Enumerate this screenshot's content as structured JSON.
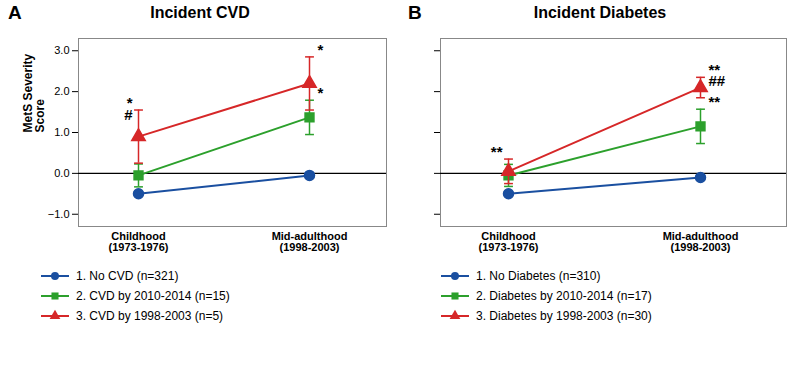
{
  "chart_data": [
    {
      "type": "line",
      "title": "Incident CVD",
      "panel_label": "A",
      "categories": [
        "Childhood\n(1973-1976)",
        "Mid-adulthood\n(1998-2003)"
      ],
      "ylabel": "MetS Severity\nScore",
      "ylim": [
        -1.3,
        3.3
      ],
      "yticks": [
        -1,
        0,
        1,
        2,
        3
      ],
      "legend": "bottom",
      "series": [
        {
          "name": "1.  No CVD (n=321)",
          "color": "#1a4fa0",
          "marker": "circle",
          "values": [
            -0.5,
            -0.05
          ],
          "errors": [
            0.05,
            0.05
          ]
        },
        {
          "name": "2.  CVD by 2010-2014 (n=15)",
          "color": "#2ca02c",
          "marker": "square",
          "values": [
            -0.05,
            1.37
          ],
          "errors": [
            0.28,
            0.42
          ]
        },
        {
          "name": "3.  CVD by 1998-2003 (n=5)",
          "color": "#d62728",
          "marker": "triangle",
          "values": [
            0.9,
            2.2
          ],
          "errors": [
            0.65,
            0.65
          ]
        }
      ],
      "annotations": [
        {
          "text": "*",
          "category": "Childhood\n(1973-1976)",
          "y": 1.6
        },
        {
          "text": "#",
          "category": "Childhood\n(1973-1976)",
          "y": 1.3
        },
        {
          "text": "*",
          "category": "Mid-adulthood\n(1998-2003)",
          "y": 2.9
        },
        {
          "text": "*",
          "category": "Mid-adulthood\n(1998-2003)",
          "y": 1.84
        }
      ]
    },
    {
      "type": "line",
      "title": "Incident Diabetes",
      "panel_label": "B",
      "categories": [
        "Childhood\n(1973-1976)",
        "Mid-adulthood\n(1998-2003)"
      ],
      "ylim": [
        -1.3,
        3.3
      ],
      "yticks": [
        -1,
        0,
        1,
        2,
        3
      ],
      "tick_labels": "x",
      "legend": "bottom",
      "series": [
        {
          "name": "1.  No Diabetes (n=310)",
          "color": "#1a4fa0",
          "marker": "circle",
          "values": [
            -0.5,
            -0.1
          ],
          "errors": [
            0.05,
            0.05
          ]
        },
        {
          "name": "2.  Diabetes by 2010-2014 (n=17)",
          "color": "#2ca02c",
          "marker": "square",
          "values": [
            -0.05,
            1.15
          ],
          "errors": [
            0.27,
            0.42
          ]
        },
        {
          "name": "3.  Diabetes by 1998-2003 (n=30)",
          "color": "#d62728",
          "marker": "triangle",
          "values": [
            0.05,
            2.1
          ],
          "errors": [
            0.3,
            0.25
          ]
        }
      ],
      "annotations": [
        {
          "text": "**",
          "category": "Childhood\n(1973-1976)",
          "y": 0.4
        },
        {
          "text": "**",
          "category": "Mid-adulthood\n(1998-2003)",
          "y": 2.4
        },
        {
          "text": "##",
          "category": "Mid-adulthood\n(1998-2003)",
          "y": 2.13
        },
        {
          "text": "**",
          "category": "Mid-adulthood\n(1998-2003)",
          "y": 1.62
        }
      ]
    }
  ]
}
